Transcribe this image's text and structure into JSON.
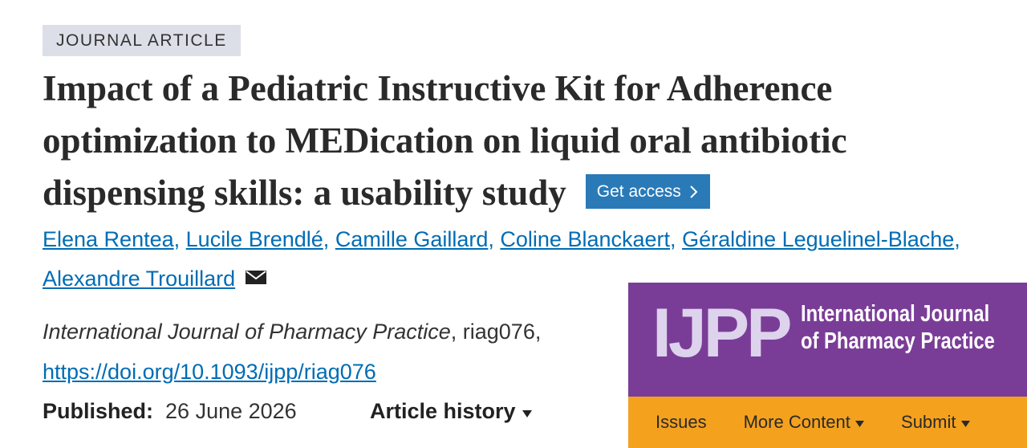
{
  "tag": "JOURNAL ARTICLE",
  "title": "Impact of a Pediatric Instructive Kit for Adherence optimization to MEDication on liquid oral antibiotic dispensing skills: a usability study",
  "access_button": "Get access",
  "authors": [
    "Elena Rentea",
    "Lucile Brendlé",
    "Camille Gaillard",
    "Coline Blanckaert",
    "Géraldine Leguelinel-Blache",
    "Alexandre Trouillard"
  ],
  "author_separator": ",",
  "citation": {
    "journal": "International Journal of Pharmacy Practice",
    "rest": ", riag076,"
  },
  "doi": "https://doi.org/10.1093/ijpp/riag076",
  "published": {
    "label": "Published:",
    "date": "26 June 2026"
  },
  "article_history": "Article history",
  "banner": {
    "logo": "IJPP",
    "name_lines": [
      "International Journal",
      "of Pharmacy Practice"
    ],
    "nav": [
      "Issues",
      "More Content",
      "Submit"
    ]
  }
}
